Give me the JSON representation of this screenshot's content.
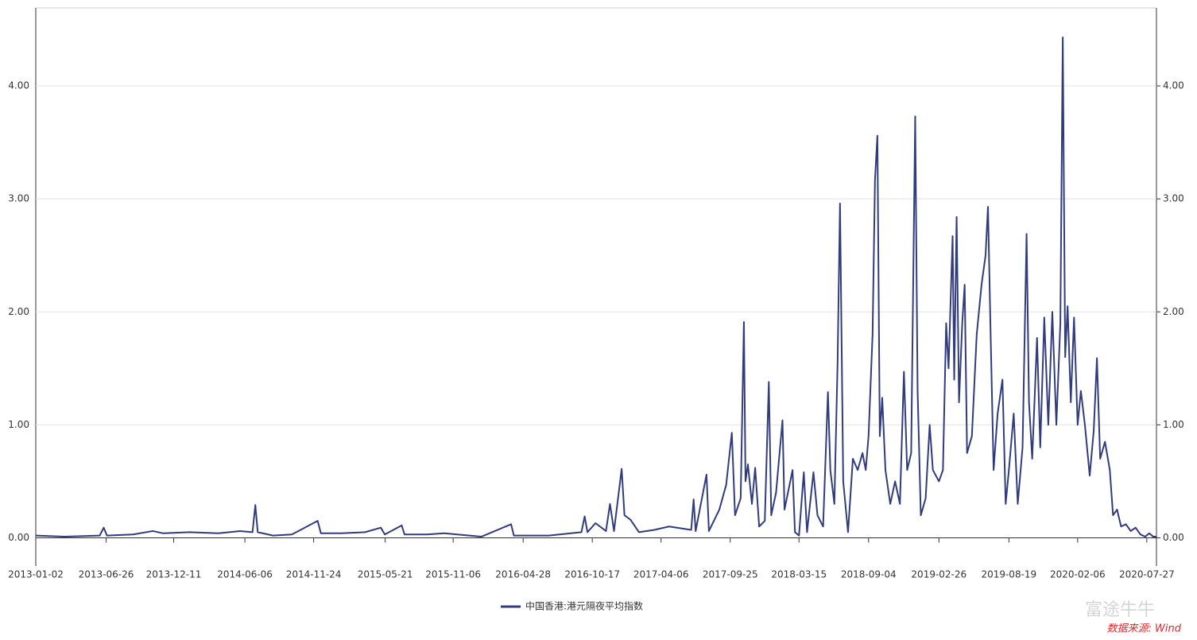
{
  "chart_data": {
    "type": "line",
    "legend_label": "中国香港:港元隔夜平均指数",
    "watermark": "富途牛牛",
    "source": "数据来源: Wind",
    "xlim": [
      "2013-01-02",
      "2020-08-20"
    ],
    "xticks": [
      "2013-01-02",
      "2013-06-26",
      "2013-12-11",
      "2014-06-06",
      "2014-11-24",
      "2015-05-21",
      "2015-11-06",
      "2016-04-28",
      "2016-10-17",
      "2017-04-06",
      "2017-09-25",
      "2018-03-15",
      "2018-09-04",
      "2019-02-26",
      "2019-08-19",
      "2020-02-06",
      "2020-07-27"
    ],
    "ylim": [
      -0.25,
      4.69
    ],
    "yticks": [
      {
        "value": 0,
        "label": "0.00"
      },
      {
        "value": 1,
        "label": "1.00"
      },
      {
        "value": 2,
        "label": "2.00"
      },
      {
        "value": 3,
        "label": "3.00"
      },
      {
        "value": 4,
        "label": "4.00"
      }
    ],
    "y2lim": [
      -0.25,
      4.69
    ],
    "y2ticks": [
      {
        "value": 0,
        "label": "0.00"
      },
      {
        "value": 1,
        "label": "1.00"
      },
      {
        "value": 2,
        "label": "2.00"
      },
      {
        "value": 3,
        "label": "3.00"
      },
      {
        "value": 4,
        "label": "4.00"
      }
    ],
    "grid": true,
    "legend_position": "bottom",
    "series": [
      {
        "name": "中国香港:港元隔夜平均指数",
        "color": "#313c7e",
        "x": [
          "2013-01-02",
          "2013-03-15",
          "2013-06-10",
          "2013-06-20",
          "2013-06-28",
          "2013-09-01",
          "2013-10-20",
          "2013-11-15",
          "2014-01-20",
          "2014-04-01",
          "2014-05-25",
          "2014-06-25",
          "2014-07-02",
          "2014-07-08",
          "2014-08-15",
          "2014-10-01",
          "2014-12-04",
          "2014-12-12",
          "2015-02-01",
          "2015-04-01",
          "2015-05-10",
          "2015-05-20",
          "2015-07-01",
          "2015-07-08",
          "2015-09-01",
          "2015-10-15",
          "2016-01-15",
          "2016-03-29",
          "2016-04-05",
          "2016-07-01",
          "2016-09-20",
          "2016-09-28",
          "2016-10-05",
          "2016-10-25",
          "2016-11-20",
          "2016-11-30",
          "2016-12-10",
          "2016-12-29",
          "2017-01-05",
          "2017-01-20",
          "2017-02-10",
          "2017-03-20",
          "2017-04-26",
          "2017-06-20",
          "2017-06-26",
          "2017-07-01",
          "2017-07-28",
          "2017-08-03",
          "2017-08-29",
          "2017-09-15",
          "2017-09-29",
          "2017-10-07",
          "2017-10-21",
          "2017-10-29",
          "2017-11-02",
          "2017-11-08",
          "2017-11-18",
          "2017-11-26",
          "2017-12-06",
          "2017-12-20",
          "2017-12-30",
          "2018-01-05",
          "2018-01-17",
          "2018-02-02",
          "2018-02-07",
          "2018-02-27",
          "2018-03-05",
          "2018-03-15",
          "2018-03-27",
          "2018-04-04",
          "2018-04-20",
          "2018-04-30",
          "2018-05-14",
          "2018-05-26",
          "2018-06-01",
          "2018-06-11",
          "2018-06-19",
          "2018-06-25",
          "2018-07-03",
          "2018-07-15",
          "2018-07-27",
          "2018-08-08",
          "2018-08-20",
          "2018-08-28",
          "2018-09-04",
          "2018-09-14",
          "2018-09-20",
          "2018-09-26",
          "2018-10-02",
          "2018-10-08",
          "2018-10-16",
          "2018-10-28",
          "2018-11-09",
          "2018-11-21",
          "2018-12-01",
          "2018-12-09",
          "2018-12-19",
          "2018-12-29",
          "2019-01-04",
          "2019-01-12",
          "2019-01-24",
          "2019-02-03",
          "2019-02-11",
          "2019-02-26",
          "2019-03-08",
          "2019-03-16",
          "2019-03-22",
          "2019-04-01",
          "2019-04-05",
          "2019-04-11",
          "2019-04-17",
          "2019-04-25",
          "2019-05-01",
          "2019-05-07",
          "2019-05-19",
          "2019-05-31",
          "2019-06-12",
          "2019-06-22",
          "2019-06-28",
          "2019-07-04",
          "2019-07-12",
          "2019-07-22",
          "2019-08-03",
          "2019-08-11",
          "2019-08-19",
          "2019-08-31",
          "2019-09-10",
          "2019-09-22",
          "2019-10-02",
          "2019-10-08",
          "2019-10-16",
          "2019-10-28",
          "2019-11-05",
          "2019-11-15",
          "2019-11-25",
          "2019-12-05",
          "2019-12-15",
          "2019-12-25",
          "2019-12-31",
          "2020-01-06",
          "2020-01-12",
          "2020-01-20",
          "2020-01-28",
          "2020-02-06",
          "2020-02-14",
          "2020-02-24",
          "2020-03-07",
          "2020-03-17",
          "2020-03-25",
          "2020-04-02",
          "2020-04-14",
          "2020-04-26",
          "2020-05-04",
          "2020-05-14",
          "2020-05-24",
          "2020-06-05",
          "2020-06-17",
          "2020-06-29",
          "2020-07-11",
          "2020-07-23",
          "2020-08-02",
          "2020-08-12",
          "2020-08-20"
        ],
        "values": [
          0.02,
          0.01,
          0.02,
          0.09,
          0.02,
          0.03,
          0.06,
          0.04,
          0.05,
          0.04,
          0.06,
          0.05,
          0.29,
          0.05,
          0.02,
          0.03,
          0.15,
          0.04,
          0.04,
          0.05,
          0.09,
          0.03,
          0.11,
          0.03,
          0.03,
          0.04,
          0.01,
          0.12,
          0.02,
          0.02,
          0.05,
          0.19,
          0.05,
          0.13,
          0.06,
          0.3,
          0.06,
          0.61,
          0.2,
          0.16,
          0.05,
          0.07,
          0.1,
          0.07,
          0.34,
          0.06,
          0.56,
          0.06,
          0.25,
          0.47,
          0.93,
          0.2,
          0.35,
          1.91,
          0.5,
          0.65,
          0.3,
          0.62,
          0.1,
          0.15,
          1.38,
          0.2,
          0.4,
          1.04,
          0.25,
          0.6,
          0.05,
          0.02,
          0.58,
          0.05,
          0.58,
          0.2,
          0.1,
          1.29,
          0.6,
          0.3,
          1.55,
          2.96,
          0.5,
          0.05,
          0.7,
          0.6,
          0.75,
          0.6,
          0.9,
          1.8,
          3.17,
          3.56,
          0.9,
          1.24,
          0.6,
          0.3,
          0.5,
          0.3,
          1.47,
          0.6,
          0.75,
          3.73,
          1.3,
          0.2,
          0.35,
          1.0,
          0.6,
          0.5,
          0.6,
          1.9,
          1.5,
          2.67,
          1.4,
          2.84,
          1.2,
          1.9,
          2.24,
          0.75,
          0.9,
          1.8,
          2.24,
          2.5,
          2.93,
          1.9,
          0.6,
          1.1,
          1.4,
          0.3,
          0.6,
          1.1,
          0.3,
          0.8,
          2.69,
          1.2,
          0.7,
          1.77,
          0.8,
          1.95,
          1.0,
          2.0,
          1.0,
          1.9,
          4.43,
          1.6,
          2.05,
          1.2,
          1.95,
          1.0,
          1.3,
          1.0,
          0.55,
          0.95,
          1.59,
          0.7,
          0.85,
          0.6,
          0.2,
          0.25,
          0.1,
          0.12,
          0.06,
          0.09,
          0.03,
          0.01,
          0.04,
          0.01,
          0.01
        ]
      }
    ]
  }
}
